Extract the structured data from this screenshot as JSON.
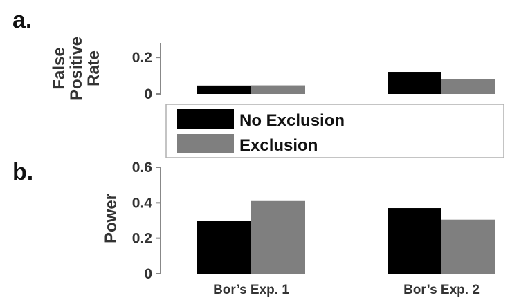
{
  "chart_data": [
    {
      "type": "bar",
      "panel_label": "a.",
      "categories": [
        "Bor’s Exp. 1",
        "Bor’s Exp. 2"
      ],
      "series": [
        {
          "name": "No Exclusion",
          "color": "#000000",
          "values": [
            0.046,
            0.121
          ]
        },
        {
          "name": "Exclusion",
          "color": "#7f7f7f",
          "values": [
            0.047,
            0.083
          ]
        }
      ],
      "ylabel": [
        "False",
        "Positive",
        "Rate"
      ],
      "yticks": [
        0,
        0.2
      ],
      "ytick_labels": [
        "0",
        "0.2"
      ],
      "ylim": [
        0,
        0.28
      ],
      "show_category_labels": false,
      "grid": false
    },
    {
      "type": "bar",
      "panel_label": "b.",
      "categories": [
        "Bor’s Exp. 1",
        "Bor’s Exp. 2"
      ],
      "series": [
        {
          "name": "No Exclusion",
          "color": "#000000",
          "values": [
            0.3,
            0.37
          ]
        },
        {
          "name": "Exclusion",
          "color": "#7f7f7f",
          "values": [
            0.41,
            0.305
          ]
        }
      ],
      "ylabel": [
        "Power"
      ],
      "yticks": [
        0,
        0.2,
        0.4,
        0.6
      ],
      "ytick_labels": [
        "0",
        "0.2",
        "0.4",
        "0.6"
      ],
      "ylim": [
        0,
        0.6
      ],
      "show_category_labels": true,
      "grid": false
    }
  ],
  "legend": {
    "placement": "between-panels",
    "entries": [
      {
        "label": "No Exclusion",
        "color": "#000000"
      },
      {
        "label": "Exclusion",
        "color": "#7f7f7f"
      }
    ]
  }
}
